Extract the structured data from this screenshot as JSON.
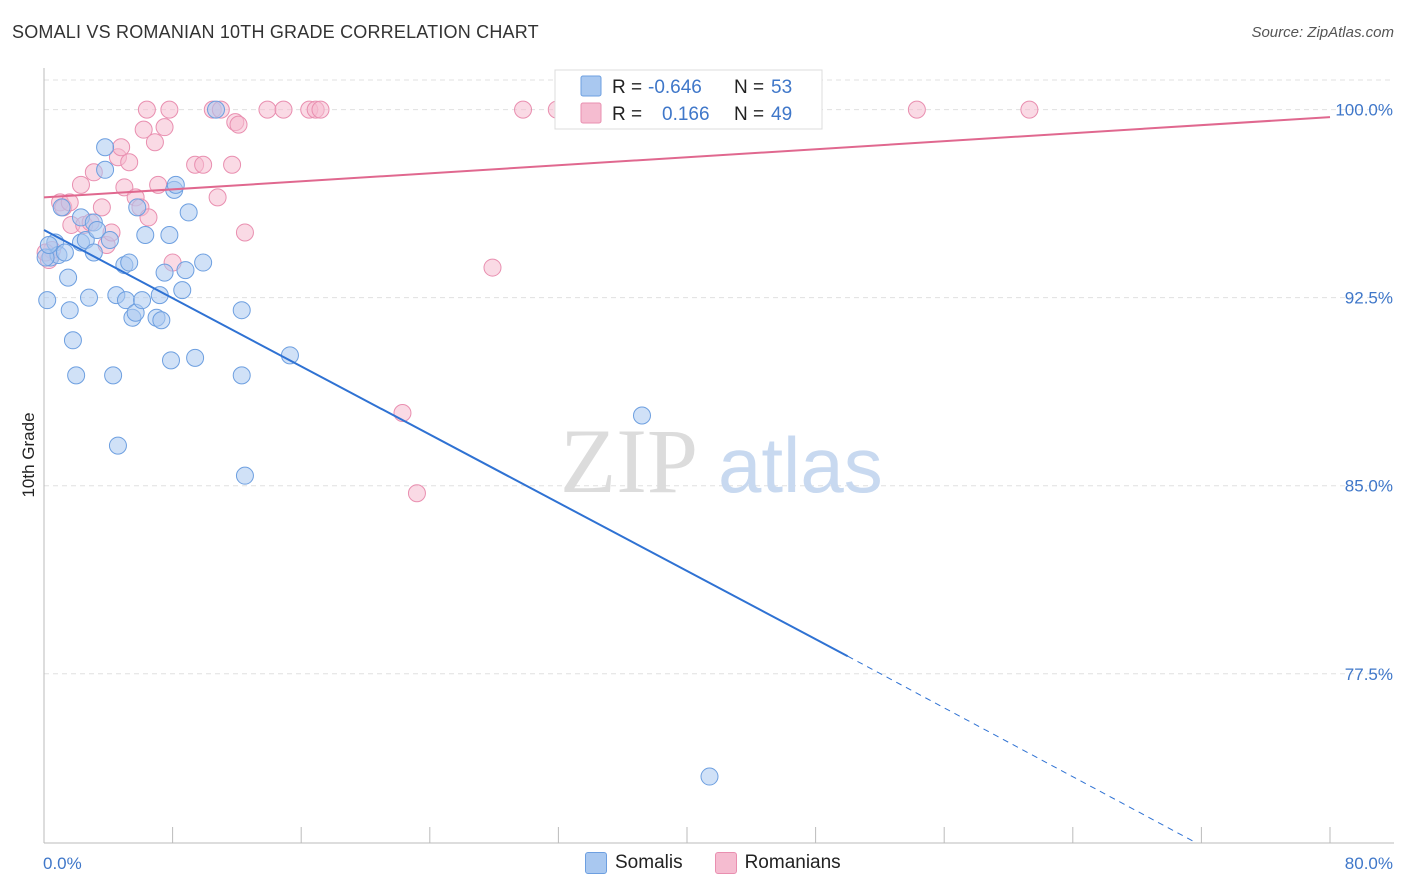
{
  "header": {
    "title": "SOMALI VS ROMANIAN 10TH GRADE CORRELATION CHART",
    "source": "Source: ZipAtlas.com"
  },
  "watermark": {
    "zip": "ZIP",
    "atlas": "atlas"
  },
  "legend": {
    "somali": {
      "r_label": "R =",
      "r_value": "-0.646",
      "n_label": "N =",
      "n_value": "53"
    },
    "romanian": {
      "r_label": "R =",
      "r_value": "0.166",
      "n_label": "N =",
      "n_value": "49"
    }
  },
  "bottom_legend": {
    "somali": "Somalis",
    "romanian": "Romanians"
  },
  "colors": {
    "somali_fill": "#a9c8f0",
    "somali_stroke": "#6d9fe0",
    "somali_line": "#2f72d3",
    "romanian_fill": "#f5bcd0",
    "romanian_stroke": "#e98fb0",
    "romanian_line": "#e0688f",
    "axis_text": "#3f77c9",
    "grid": "#e0e0e0"
  },
  "chart_data": {
    "type": "scatter",
    "title": "SOMALI VS ROMANIAN 10TH GRADE CORRELATION CHART",
    "xlabel": "",
    "ylabel": "10th Grade",
    "xlim": [
      0,
      80
    ],
    "ylim": [
      70.75,
      101.5
    ],
    "x_tick_labels": [
      "0.0%",
      "80.0%"
    ],
    "y_ticks": [
      100.0,
      92.5,
      85.0,
      77.5
    ],
    "y_tick_labels": [
      "100.0%",
      "92.5%",
      "85.0%",
      "77.5%"
    ],
    "series": [
      {
        "name": "Somalis",
        "r": -0.646,
        "n": 53,
        "trend": {
          "x0": 0,
          "y0": 95.2,
          "x1": 50,
          "y1": 78.2,
          "dashed_to_x": 80,
          "dashed_to_y": 67.9
        },
        "points": [
          [
            0.2,
            92.4
          ],
          [
            0.4,
            94.1
          ],
          [
            0.7,
            94.7
          ],
          [
            0.9,
            94.2
          ],
          [
            1.1,
            96.1
          ],
          [
            1.3,
            94.3
          ],
          [
            1.5,
            93.3
          ],
          [
            1.6,
            92.0
          ],
          [
            1.8,
            90.8
          ],
          [
            2.0,
            89.4
          ],
          [
            2.3,
            94.7
          ],
          [
            2.3,
            95.7
          ],
          [
            2.6,
            94.8
          ],
          [
            2.8,
            92.5
          ],
          [
            3.1,
            94.3
          ],
          [
            3.1,
            95.5
          ],
          [
            3.3,
            95.2
          ],
          [
            3.8,
            98.5
          ],
          [
            3.8,
            97.6
          ],
          [
            4.1,
            94.8
          ],
          [
            4.3,
            89.4
          ],
          [
            4.5,
            92.6
          ],
          [
            4.6,
            86.6
          ],
          [
            5.0,
            93.8
          ],
          [
            5.1,
            92.4
          ],
          [
            5.3,
            93.9
          ],
          [
            5.5,
            91.7
          ],
          [
            5.7,
            91.9
          ],
          [
            5.8,
            96.1
          ],
          [
            6.1,
            92.4
          ],
          [
            6.3,
            95.0
          ],
          [
            7.0,
            91.7
          ],
          [
            7.2,
            92.6
          ],
          [
            7.3,
            91.6
          ],
          [
            7.5,
            93.5
          ],
          [
            7.8,
            95.0
          ],
          [
            7.9,
            90.0
          ],
          [
            8.1,
            96.8
          ],
          [
            8.2,
            97.0
          ],
          [
            8.6,
            92.8
          ],
          [
            8.8,
            93.6
          ],
          [
            9.0,
            95.9
          ],
          [
            9.4,
            90.1
          ],
          [
            9.9,
            93.9
          ],
          [
            10.7,
            100.0
          ],
          [
            12.3,
            92.0
          ],
          [
            12.3,
            89.4
          ],
          [
            12.5,
            85.4
          ],
          [
            15.3,
            90.2
          ],
          [
            37.2,
            87.8
          ],
          [
            41.4,
            73.4
          ],
          [
            0.1,
            94.1
          ],
          [
            0.3,
            94.6
          ]
        ]
      },
      {
        "name": "Romanians",
        "r": 0.166,
        "n": 49,
        "trend": {
          "x0": 0,
          "y0": 96.5,
          "x1": 80,
          "y1": 99.7
        },
        "points": [
          [
            0.3,
            94.0
          ],
          [
            0.5,
            94.4
          ],
          [
            1.0,
            96.3
          ],
          [
            1.2,
            96.1
          ],
          [
            1.6,
            96.3
          ],
          [
            1.7,
            95.4
          ],
          [
            2.3,
            97.0
          ],
          [
            2.5,
            95.4
          ],
          [
            2.9,
            95.5
          ],
          [
            3.1,
            97.5
          ],
          [
            3.6,
            96.1
          ],
          [
            3.9,
            94.6
          ],
          [
            4.2,
            95.1
          ],
          [
            4.6,
            98.1
          ],
          [
            4.8,
            98.5
          ],
          [
            5.0,
            96.9
          ],
          [
            5.3,
            97.9
          ],
          [
            5.7,
            96.5
          ],
          [
            6.0,
            96.1
          ],
          [
            6.2,
            99.2
          ],
          [
            6.5,
            95.7
          ],
          [
            6.4,
            100.0
          ],
          [
            6.9,
            98.7
          ],
          [
            7.1,
            97.0
          ],
          [
            7.5,
            99.3
          ],
          [
            7.8,
            100.0
          ],
          [
            8.0,
            93.9
          ],
          [
            9.4,
            97.8
          ],
          [
            9.9,
            97.8
          ],
          [
            10.5,
            100.0
          ],
          [
            10.8,
            96.5
          ],
          [
            11.0,
            100.0
          ],
          [
            11.7,
            97.8
          ],
          [
            11.9,
            99.5
          ],
          [
            12.1,
            99.4
          ],
          [
            12.5,
            95.1
          ],
          [
            13.9,
            100.0
          ],
          [
            14.9,
            100.0
          ],
          [
            16.5,
            100.0
          ],
          [
            16.9,
            100.0
          ],
          [
            17.2,
            100.0
          ],
          [
            22.3,
            87.9
          ],
          [
            23.2,
            84.7
          ],
          [
            27.9,
            93.7
          ],
          [
            29.8,
            100.0
          ],
          [
            31.9,
            100.0
          ],
          [
            54.3,
            100.0
          ],
          [
            61.3,
            100.0
          ],
          [
            0.1,
            94.3
          ]
        ]
      }
    ]
  }
}
